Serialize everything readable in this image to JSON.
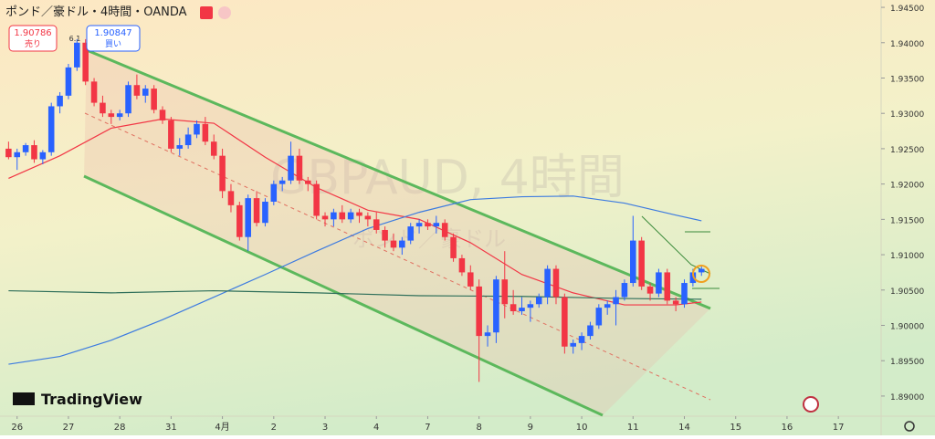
{
  "chart_data": {
    "type": "candlestick",
    "title": "ポンド／豪ドル・4時間・OANDA",
    "sell_price": "1.90786",
    "sell_label": "売り",
    "buy_price": "1.90847",
    "buy_label": "買い",
    "annotations": [
      "6.1"
    ],
    "watermark": [
      "GBPAUD, 4時間",
      "ポンド／豪ドル"
    ],
    "brand": "TradingView",
    "up_color": "#2962ff",
    "down_color": "#f23645",
    "xlim": [
      -1,
      102
    ],
    "ylim": [
      1.88715,
      1.94604
    ],
    "xticks": [
      {
        "value": 1,
        "label": "26"
      },
      {
        "value": 7,
        "label": "27"
      },
      {
        "value": 13,
        "label": "28"
      },
      {
        "value": 19,
        "label": "31"
      },
      {
        "value": 25,
        "label": "4月"
      },
      {
        "value": 31,
        "label": "2"
      },
      {
        "value": 37,
        "label": "3"
      },
      {
        "value": 43,
        "label": "4"
      },
      {
        "value": 49,
        "label": "7"
      },
      {
        "value": 55,
        "label": "8"
      },
      {
        "value": 61,
        "label": "9"
      },
      {
        "value": 67,
        "label": "10"
      },
      {
        "value": 73,
        "label": "11"
      },
      {
        "value": 79,
        "label": "14"
      },
      {
        "value": 85,
        "label": "15"
      },
      {
        "value": 91,
        "label": "16"
      },
      {
        "value": 97,
        "label": "17"
      }
    ],
    "yticks": [
      {
        "value": 1.945,
        "label": "1.94500"
      },
      {
        "value": 1.94,
        "label": "1.94000"
      },
      {
        "value": 1.935,
        "label": "1.93500"
      },
      {
        "value": 1.93,
        "label": "1.93000"
      },
      {
        "value": 1.925,
        "label": "1.92500"
      },
      {
        "value": 1.92,
        "label": "1.92000"
      },
      {
        "value": 1.915,
        "label": "1.91500"
      },
      {
        "value": 1.91,
        "label": "1.91000"
      },
      {
        "value": 1.905,
        "label": "1.90500"
      },
      {
        "value": 1.9,
        "label": "1.90000"
      },
      {
        "value": 1.895,
        "label": "1.89500"
      },
      {
        "value": 1.89,
        "label": "1.89000"
      }
    ],
    "candles": {
      "x": [
        0,
        1,
        2,
        3,
        4,
        5,
        6,
        7,
        8,
        9,
        10,
        11,
        12,
        13,
        14,
        15,
        16,
        17,
        18,
        19,
        20,
        21,
        22,
        23,
        24,
        25,
        26,
        27,
        28,
        29,
        30,
        31,
        32,
        33,
        34,
        35,
        36,
        37,
        38,
        39,
        40,
        41,
        42,
        43,
        44,
        45,
        46,
        47,
        48,
        49,
        50,
        51,
        52,
        53,
        54,
        55,
        56,
        57,
        58,
        59,
        60,
        61,
        62,
        63,
        64,
        65,
        66,
        67,
        68,
        69,
        70,
        71,
        72,
        73,
        74,
        75,
        76,
        77,
        78,
        79,
        80,
        81
      ],
      "ohlc": [
        [
          1.925,
          1.926,
          1.9235,
          1.9238
        ],
        [
          1.9238,
          1.925,
          1.922,
          1.9245
        ],
        [
          1.9245,
          1.9258,
          1.924,
          1.9255
        ],
        [
          1.9255,
          1.9262,
          1.923,
          1.9235
        ],
        [
          1.9235,
          1.9248,
          1.9228,
          1.9245
        ],
        [
          1.9245,
          1.9315,
          1.924,
          1.931
        ],
        [
          1.931,
          1.933,
          1.93,
          1.9325
        ],
        [
          1.9325,
          1.937,
          1.932,
          1.9365
        ],
        [
          1.9365,
          1.9405,
          1.936,
          1.94
        ],
        [
          1.94,
          1.9405,
          1.934,
          1.9345
        ],
        [
          1.9345,
          1.935,
          1.931,
          1.9315
        ],
        [
          1.9315,
          1.9325,
          1.9295,
          1.93
        ],
        [
          1.93,
          1.9305,
          1.9285,
          1.9295
        ],
        [
          1.9295,
          1.9305,
          1.929,
          1.93
        ],
        [
          1.93,
          1.9345,
          1.9295,
          1.934
        ],
        [
          1.934,
          1.9355,
          1.932,
          1.9325
        ],
        [
          1.9325,
          1.934,
          1.9315,
          1.9335
        ],
        [
          1.9335,
          1.934,
          1.93,
          1.9305
        ],
        [
          1.9305,
          1.931,
          1.9285,
          1.929
        ],
        [
          1.929,
          1.9295,
          1.9245,
          1.925
        ],
        [
          1.925,
          1.9265,
          1.924,
          1.9255
        ],
        [
          1.9255,
          1.928,
          1.925,
          1.927
        ],
        [
          1.927,
          1.929,
          1.9265,
          1.9285
        ],
        [
          1.9285,
          1.9295,
          1.9255,
          1.926
        ],
        [
          1.926,
          1.927,
          1.9235,
          1.924
        ],
        [
          1.924,
          1.925,
          1.918,
          1.919
        ],
        [
          1.919,
          1.92,
          1.916,
          1.917
        ],
        [
          1.917,
          1.9175,
          1.912,
          1.9125
        ],
        [
          1.9125,
          1.9185,
          1.9105,
          1.918
        ],
        [
          1.918,
          1.919,
          1.914,
          1.9145
        ],
        [
          1.9145,
          1.918,
          1.914,
          1.9175
        ],
        [
          1.9175,
          1.9205,
          1.917,
          1.92
        ],
        [
          1.92,
          1.921,
          1.919,
          1.9205
        ],
        [
          1.9205,
          1.926,
          1.92,
          1.924
        ],
        [
          1.924,
          1.925,
          1.92,
          1.9205
        ],
        [
          1.9205,
          1.921,
          1.919,
          1.92
        ],
        [
          1.92,
          1.9205,
          1.915,
          1.9155
        ],
        [
          1.9155,
          1.916,
          1.914,
          1.915
        ],
        [
          1.915,
          1.9165,
          1.914,
          1.916
        ],
        [
          1.916,
          1.917,
          1.9145,
          1.915
        ],
        [
          1.915,
          1.9165,
          1.9145,
          1.916
        ],
        [
          1.916,
          1.9165,
          1.9145,
          1.9155
        ],
        [
          1.9155,
          1.916,
          1.914,
          1.915
        ],
        [
          1.915,
          1.916,
          1.913,
          1.9135
        ],
        [
          1.9135,
          1.914,
          1.911,
          1.912
        ],
        [
          1.912,
          1.913,
          1.9105,
          1.911
        ],
        [
          1.911,
          1.9125,
          1.91,
          1.912
        ],
        [
          1.912,
          1.9145,
          1.9115,
          1.914
        ],
        [
          1.914,
          1.915,
          1.913,
          1.9145
        ],
        [
          1.9145,
          1.915,
          1.9135,
          1.914
        ],
        [
          1.914,
          1.9155,
          1.913,
          1.9145
        ],
        [
          1.9145,
          1.915,
          1.912,
          1.9125
        ],
        [
          1.9125,
          1.913,
          1.909,
          1.9095
        ],
        [
          1.9095,
          1.91,
          1.907,
          1.9075
        ],
        [
          1.9075,
          1.9085,
          1.905,
          1.9055
        ],
        [
          1.9055,
          1.9065,
          1.892,
          1.8985
        ],
        [
          1.8985,
          1.9,
          1.897,
          1.899
        ],
        [
          1.899,
          1.907,
          1.8975,
          1.9065
        ],
        [
          1.9065,
          1.9105,
          1.901,
          1.903
        ],
        [
          1.903,
          1.905,
          1.9015,
          1.902
        ],
        [
          1.902,
          1.904,
          1.9015,
          1.9025
        ],
        [
          1.9025,
          1.9035,
          1.9005,
          1.903
        ],
        [
          1.903,
          1.9045,
          1.9025,
          1.904
        ],
        [
          1.904,
          1.9085,
          1.903,
          1.908
        ],
        [
          1.908,
          1.9085,
          1.903,
          1.904
        ],
        [
          1.904,
          1.9045,
          1.896,
          1.897
        ],
        [
          1.897,
          1.898,
          1.896,
          1.8975
        ],
        [
          1.8975,
          1.899,
          1.8965,
          1.8985
        ],
        [
          1.8985,
          1.9005,
          1.898,
          1.9
        ],
        [
          1.9,
          1.903,
          1.8995,
          1.9025
        ],
        [
          1.9025,
          1.9035,
          1.9015,
          1.903
        ],
        [
          1.903,
          1.905,
          1.9,
          1.904
        ],
        [
          1.904,
          1.9065,
          1.9035,
          1.906
        ],
        [
          1.906,
          1.9155,
          1.9055,
          1.912
        ],
        [
          1.912,
          1.9125,
          1.905,
          1.9055
        ],
        [
          1.9055,
          1.906,
          1.9035,
          1.9045
        ],
        [
          1.9045,
          1.908,
          1.904,
          1.9075
        ],
        [
          1.9075,
          1.908,
          1.903,
          1.9035
        ],
        [
          1.9035,
          1.904,
          1.902,
          1.903
        ],
        [
          1.903,
          1.9065,
          1.9025,
          1.906
        ],
        [
          1.906,
          1.908,
          1.9055,
          1.9075
        ],
        [
          1.9075,
          1.9085,
          1.907,
          1.908
        ]
      ]
    },
    "series": [
      {
        "color": "#f23645",
        "x": [
          0,
          6,
          12,
          18,
          24,
          30,
          36,
          42,
          48,
          54,
          60,
          66,
          72,
          78,
          81
        ],
        "values": [
          1.9208,
          1.924,
          1.9279,
          1.9292,
          1.9286,
          1.9238,
          1.9195,
          1.9163,
          1.915,
          1.9117,
          1.9072,
          1.9046,
          1.9029,
          1.9029,
          1.9033
        ]
      },
      {
        "color": "#3d7be0",
        "x": [
          0,
          6,
          12,
          18,
          24,
          30,
          36,
          42,
          48,
          54,
          60,
          66,
          72,
          78,
          81
        ],
        "values": [
          1.8945,
          1.8956,
          1.8979,
          1.9008,
          1.904,
          1.9072,
          1.9105,
          1.9137,
          1.916,
          1.9178,
          1.9182,
          1.9183,
          1.9173,
          1.9156,
          1.9148
        ]
      },
      {
        "color": "#2f6f5a",
        "x": [
          0,
          12,
          24,
          36,
          48,
          60,
          72,
          81
        ],
        "values": [
          1.9049,
          1.9046,
          1.9049,
          1.9046,
          1.9042,
          1.9041,
          1.9038,
          1.9037
        ]
      }
    ]
  }
}
